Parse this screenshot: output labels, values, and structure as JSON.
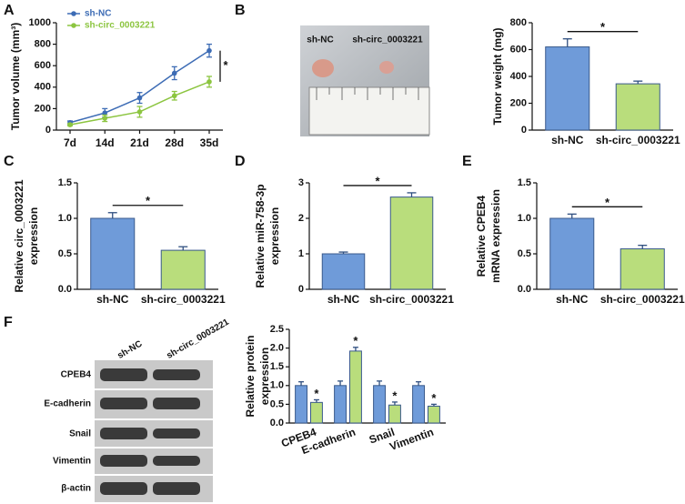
{
  "panel_labels": [
    "A",
    "B",
    "C",
    "D",
    "E",
    "F"
  ],
  "photo": {
    "labels": [
      "sh-NC",
      "sh-circ_0003221"
    ]
  },
  "blot": {
    "lanes": [
      "sh-NC",
      "sh-circ_0003221"
    ],
    "rows": [
      "CPEB4",
      "E-cadherin",
      "Snail",
      "Vimentin",
      "β-actin"
    ]
  },
  "chart_data": [
    {
      "type": "line",
      "ylabel": "Tumor volume (mm³)",
      "categories": [
        "7d",
        "14d",
        "21d",
        "28d",
        "35d"
      ],
      "series": [
        {
          "name": "sh-NC",
          "color": "#3d6cb5",
          "values": [
            70,
            160,
            300,
            530,
            740
          ],
          "errors": [
            15,
            40,
            50,
            60,
            60
          ]
        },
        {
          "name": "sh-circ_0003221",
          "color": "#8cc540",
          "values": [
            50,
            110,
            170,
            320,
            450
          ],
          "errors": [
            10,
            30,
            50,
            40,
            50
          ]
        }
      ],
      "ylim": [
        0,
        1000
      ],
      "yticks": [
        0,
        200,
        400,
        600,
        800,
        1000
      ],
      "annotation": "*",
      "legend": "top-left"
    },
    {
      "type": "bar",
      "ylabel": "Tumor weight (mg)",
      "categories": [
        "sh-NC",
        "sh-circ_0003221"
      ],
      "values": [
        620,
        345
      ],
      "errors": [
        60,
        20
      ],
      "colors": [
        "#6f9bd9",
        "#b9dd7c"
      ],
      "ylim": [
        0,
        800
      ],
      "yticks": [
        0,
        200,
        400,
        600,
        800
      ],
      "annotation": "*"
    },
    {
      "type": "bar",
      "ylabel": [
        "Relative circ_0003221",
        "expression"
      ],
      "categories": [
        "sh-NC",
        "sh-circ_0003221"
      ],
      "values": [
        1.0,
        0.55
      ],
      "errors": [
        0.08,
        0.05
      ],
      "colors": [
        "#6f9bd9",
        "#b9dd7c"
      ],
      "ylim": [
        0,
        1.5
      ],
      "yticks": [
        {
          "value": 0,
          "label": "0.0"
        },
        0.5,
        {
          "value": 1,
          "label": "1.0"
        },
        1.5
      ],
      "annotation": "*"
    },
    {
      "type": "bar",
      "ylabel": [
        "Relative miR-758-3p",
        "expression"
      ],
      "categories": [
        "sh-NC",
        "sh-circ_0003221"
      ],
      "values": [
        1.0,
        2.6
      ],
      "errors": [
        0.05,
        0.12
      ],
      "colors": [
        "#6f9bd9",
        "#b9dd7c"
      ],
      "ylim": [
        0,
        3
      ],
      "yticks": [
        0,
        1,
        2,
        3
      ],
      "annotation": "*"
    },
    {
      "type": "bar",
      "ylabel": [
        "Relative CPEB4",
        "mRNA expression"
      ],
      "categories": [
        "sh-NC",
        "sh-circ_0003221"
      ],
      "values": [
        1.0,
        0.57
      ],
      "errors": [
        0.06,
        0.05
      ],
      "colors": [
        "#6f9bd9",
        "#b9dd7c"
      ],
      "ylim": [
        0,
        1.5
      ],
      "yticks": [
        {
          "value": 0,
          "label": "0.0"
        },
        0.5,
        {
          "value": 1,
          "label": "1.0"
        },
        1.5
      ],
      "annotation": "*"
    },
    {
      "type": "grouped_bar",
      "ylabel": [
        "Relative protein",
        "expression"
      ],
      "categories": [
        "CPEB4",
        "E-cadherin",
        "Snail",
        "Vimentin"
      ],
      "series": [
        {
          "color": "#6f9bd9",
          "values": [
            1.0,
            1.0,
            1.0,
            1.0
          ],
          "errors": [
            0.1,
            0.12,
            0.12,
            0.1
          ]
        },
        {
          "color": "#b9dd7c",
          "values": [
            0.55,
            1.92,
            0.48,
            0.45
          ],
          "errors": [
            0.07,
            0.1,
            0.08,
            0.05
          ]
        }
      ],
      "ylim": [
        0,
        2.5
      ],
      "yticks": [
        {
          "value": 0,
          "label": "0.0"
        },
        0.5,
        {
          "value": 1,
          "label": "1.0"
        },
        1.5,
        {
          "value": 2,
          "label": "2.0"
        },
        2.5
      ],
      "annotation": "*"
    }
  ]
}
